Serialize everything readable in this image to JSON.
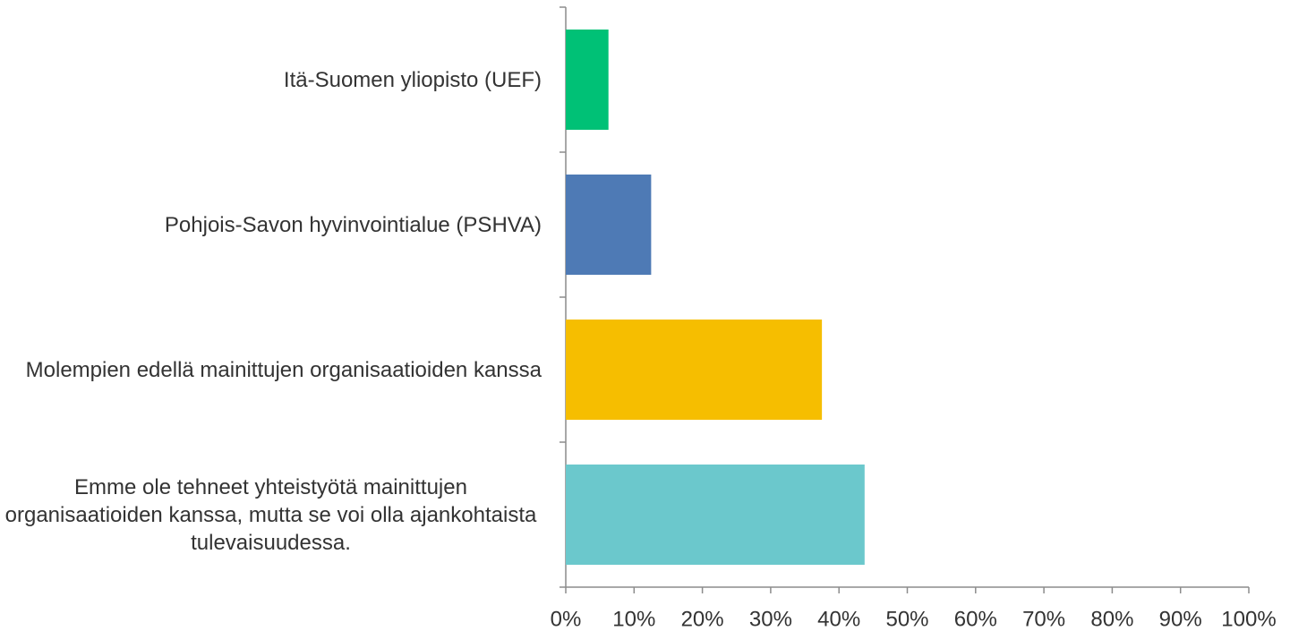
{
  "chart_data": {
    "type": "barh",
    "categories": [
      "Itä-Suomen yliopisto (UEF)",
      "Pohjois-Savon hyvinvointialue (PSHVA)",
      "Molempien edellä mainittujen organisaatioiden kanssa",
      "Emme ole tehneet yhteistyötä mainittujen organisaatioiden kanssa, mutta se voi olla ajankohtaista tulevaisuudessa."
    ],
    "values": [
      6.25,
      12.5,
      37.5,
      43.75
    ],
    "colors": [
      "#00c176",
      "#4e7ab5",
      "#f6be00",
      "#6bc8cc"
    ],
    "xlim": [
      0,
      100
    ],
    "xticks": [
      {
        "value": 0,
        "label": "0%"
      },
      {
        "value": 10,
        "label": "10%"
      },
      {
        "value": 20,
        "label": "20%"
      },
      {
        "value": 30,
        "label": "30%"
      },
      {
        "value": 40,
        "label": "40%"
      },
      {
        "value": 50,
        "label": "50%"
      },
      {
        "value": 60,
        "label": "60%"
      },
      {
        "value": 70,
        "label": "70%"
      },
      {
        "value": 80,
        "label": "80%"
      },
      {
        "value": 90,
        "label": "90%"
      },
      {
        "value": 100,
        "label": "100%"
      }
    ]
  }
}
